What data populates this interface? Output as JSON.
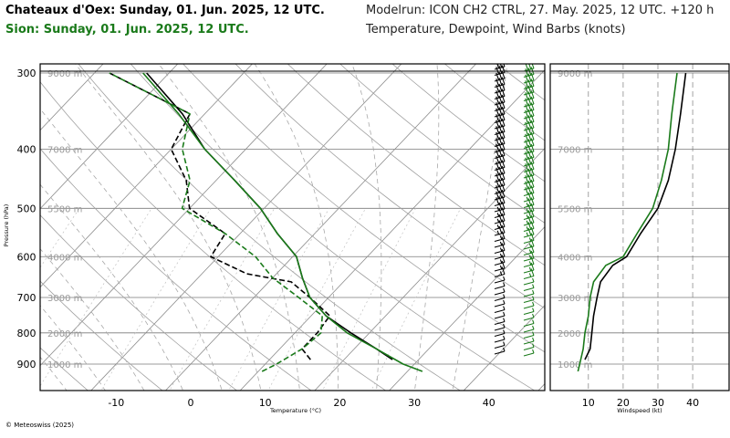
{
  "header": {
    "title_line1": "Chateaux d'Oex: Sunday, 01. Jun. 2025, 12 UTC.",
    "title_line2": "Sion: Sunday, 01. Jun. 2025, 12 UTC.",
    "modelrun": "Modelrun: ICON CH2 CTRL, 27. May. 2025, 12 UTC. +120 h",
    "subtitle": "Temperature, Dewpoint, Wind Barbs (knots)",
    "colors": {
      "station1": "#000000",
      "station2": "#1a7a1a"
    }
  },
  "footer": {
    "copyright": "© Meteoswiss (2025)"
  },
  "chart_data": [
    {
      "type": "line",
      "subtype": "skew-t log-p diagram",
      "xlabel": "Temperature (°C)",
      "ylabel": "Pressure (hPa)",
      "x_ticks": [
        -10,
        0,
        10,
        20,
        30,
        40
      ],
      "y_ticks": [
        300,
        400,
        500,
        600,
        700,
        800,
        900
      ],
      "height_labels": [
        "9000 m",
        "7000 m",
        "5500 m",
        "4000 m",
        "3000 m",
        "2000 m",
        "1000 m"
      ],
      "height_label_pressures": [
        300,
        400,
        500,
        600,
        700,
        800,
        900
      ],
      "grid": true,
      "series": [
        {
          "name": "Chateaux d'Oex",
          "color": "#000000",
          "temperature": {
            "p": [
              885,
              850,
              800,
              750,
              700,
              650,
              600,
              550,
              500,
              450,
              400,
              350,
              300
            ],
            "t": [
              26.5,
              23,
              17.5,
              12,
              7.5,
              4,
              0.5,
              -5,
              -10.5,
              -17.5,
              -25.5,
              -33,
              -43
            ]
          },
          "dewpoint": {
            "p": [
              885,
              850,
              800,
              750,
              700,
              660,
              640,
              600,
              550,
              500,
              450,
              400,
              350,
              300
            ],
            "t": [
              15.5,
              13,
              13,
              12.5,
              7.5,
              3,
              -4,
              -11,
              -12,
              -20,
              -24,
              -30,
              -32,
              -48
            ]
          }
        },
        {
          "name": "Sion",
          "color": "#1a7a1a",
          "temperature": {
            "p": [
              925,
              900,
              850,
              800,
              750,
              700,
              650,
              600,
              550,
              500,
              450,
              400,
              350,
              300
            ],
            "t": [
              32,
              28.5,
              23,
              17,
              12,
              7.5,
              4,
              0.5,
              -5,
              -10.5,
              -17.5,
              -25.5,
              -33.5,
              -43.5
            ]
          },
          "dewpoint": {
            "p": [
              925,
              900,
              850,
              800,
              750,
              700,
              650,
              600,
              550,
              500,
              450,
              400,
              350,
              300
            ],
            "t": [
              10.5,
              11.5,
              13,
              13.5,
              11.5,
              6,
              0,
              -5,
              -12,
              -21,
              -23.5,
              -28.5,
              -32,
              -48
            ]
          }
        }
      ]
    },
    {
      "type": "line",
      "subtype": "wind speed profile",
      "xlabel": "Windspeed (kt)",
      "x_ticks": [
        10,
        20,
        30,
        40
      ],
      "xlim": [
        0,
        45
      ],
      "height_labels": [
        "9000 m",
        "7000 m",
        "5500 m",
        "4000 m",
        "3000 m",
        "2000 m",
        "1000 m"
      ],
      "height_label_pressures": [
        300,
        400,
        500,
        600,
        700,
        800,
        900
      ],
      "grid": true,
      "series": [
        {
          "name": "Chateaux d'Oex",
          "color": "#000000",
          "p": [
            885,
            850,
            800,
            750,
            700,
            660,
            620,
            600,
            550,
            500,
            450,
            400,
            350,
            300
          ],
          "speed": [
            9,
            10.5,
            11,
            11.5,
            12.5,
            13.5,
            17,
            21,
            25,
            30,
            33,
            35,
            36.5,
            38
          ]
        },
        {
          "name": "Sion",
          "color": "#1a7a1a",
          "p": [
            925,
            900,
            850,
            800,
            750,
            700,
            660,
            620,
            600,
            550,
            500,
            450,
            400,
            350,
            300
          ],
          "speed": [
            7,
            7.5,
            8.5,
            9,
            10,
            10.5,
            11.5,
            15,
            20,
            24,
            28.5,
            31,
            33,
            34,
            35.5
          ]
        }
      ]
    }
  ]
}
